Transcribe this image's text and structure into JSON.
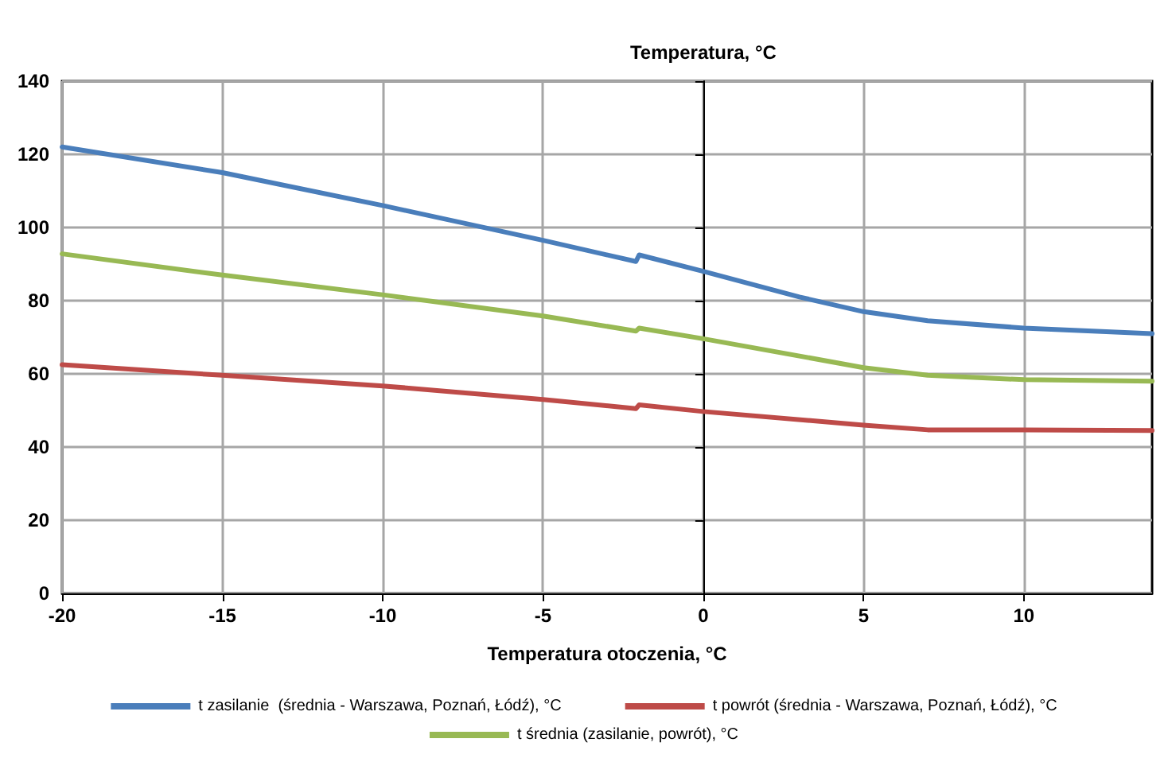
{
  "chart_data": {
    "type": "line",
    "xlabel": "Temperatura otoczenia, °C",
    "ylabel": "Temperatura, °C",
    "xlim": [
      -20,
      14
    ],
    "xticks": [
      -20,
      -15,
      -10,
      -5,
      0,
      5,
      10
    ],
    "ylim": [
      0,
      140
    ],
    "yticks": [
      0,
      20,
      40,
      60,
      80,
      100,
      120,
      140
    ],
    "grid": true,
    "legend": "bottom",
    "marker": "none",
    "line_style": "solid",
    "series": [
      {
        "name": "t zasilanie  (średnia - Warszawa, Poznań, Łódź), °C",
        "color": "#4a7ebb",
        "x": [
          -20,
          -15,
          -10,
          -5,
          -2.1,
          -2,
          0,
          3,
          5,
          7,
          10,
          14
        ],
        "values": [
          122,
          115,
          106,
          96.5,
          90.7,
          92.5,
          88,
          81,
          77,
          74.5,
          72.5,
          71
        ]
      },
      {
        "name": "t powrót (średnia - Warszawa, Poznań, Łódź), °C",
        "color": "#be4b48",
        "x": [
          -20,
          -15,
          -10,
          -5,
          -2.1,
          -2,
          0,
          5,
          7,
          10,
          14
        ],
        "values": [
          62.5,
          59.6,
          56.7,
          53,
          50.5,
          51.5,
          49.7,
          46,
          44.7,
          44.7,
          44.5
        ]
      },
      {
        "name": "t średnia (zasilanie, powrót), °C",
        "color": "#98b954",
        "x": [
          -20,
          -15,
          -10,
          -5,
          -2.1,
          -2,
          0,
          5,
          7,
          10,
          14
        ],
        "values": [
          92.8,
          87,
          81.6,
          75.8,
          71.7,
          72.5,
          69.6,
          61.7,
          59.6,
          58.4,
          58
        ]
      }
    ]
  }
}
